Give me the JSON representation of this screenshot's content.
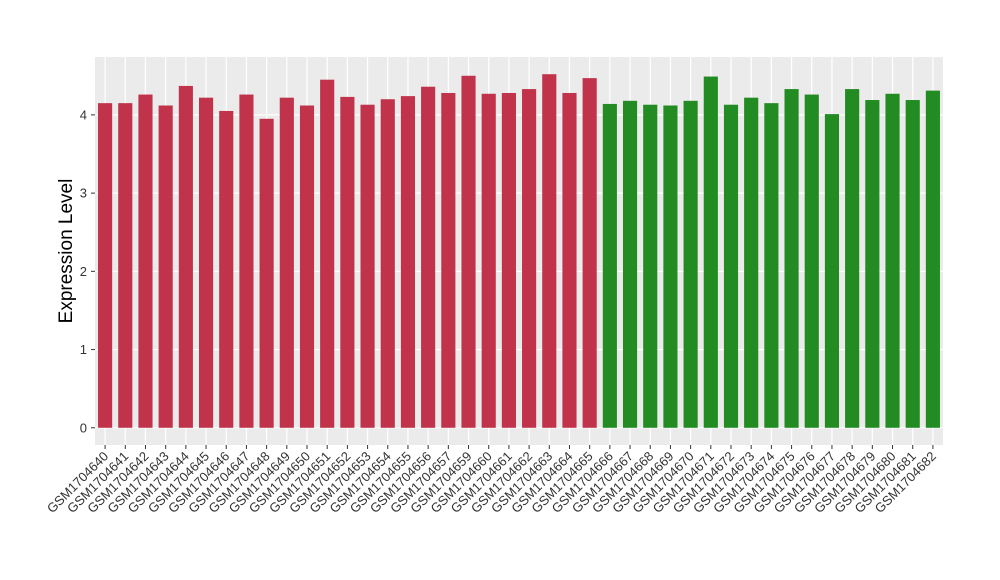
{
  "chart_data": {
    "type": "bar",
    "y_label": "Expression Level",
    "categories": [
      "GSM1704640",
      "GSM1704641",
      "GSM1704642",
      "GSM1704643",
      "GSM1704644",
      "GSM1704645",
      "GSM1704646",
      "GSM1704647",
      "GSM1704648",
      "GSM1704649",
      "GSM1704650",
      "GSM1704651",
      "GSM1704652",
      "GSM1704653",
      "GSM1704654",
      "GSM1704655",
      "GSM1704656",
      "GSM1704657",
      "GSM1704659",
      "GSM1704660",
      "GSM1704661",
      "GSM1704662",
      "GSM1704663",
      "GSM1704664",
      "GSM1704665",
      "GSM1704666",
      "GSM1704667",
      "GSM1704668",
      "GSM1704669",
      "GSM1704670",
      "GSM1704671",
      "GSM1704672",
      "GSM1704673",
      "GSM1704674",
      "GSM1704675",
      "GSM1704676",
      "GSM1704677",
      "GSM1704678",
      "GSM1704679",
      "GSM1704680",
      "GSM1704681",
      "GSM1704682"
    ],
    "values": [
      4.15,
      4.15,
      4.26,
      4.12,
      4.37,
      4.22,
      4.05,
      4.26,
      3.95,
      4.22,
      4.12,
      4.45,
      4.23,
      4.13,
      4.2,
      4.24,
      4.36,
      4.28,
      4.5,
      4.27,
      4.28,
      4.33,
      4.52,
      4.28,
      4.47,
      4.14,
      4.18,
      4.13,
      4.12,
      4.18,
      4.49,
      4.13,
      4.22,
      4.15,
      4.33,
      4.26,
      4.01,
      4.33,
      4.19,
      4.27,
      4.19,
      4.31
    ],
    "colors": [
      "#c0334a",
      "#c0334a",
      "#c0334a",
      "#c0334a",
      "#c0334a",
      "#c0334a",
      "#c0334a",
      "#c0334a",
      "#c0334a",
      "#c0334a",
      "#c0334a",
      "#c0334a",
      "#c0334a",
      "#c0334a",
      "#c0334a",
      "#c0334a",
      "#c0334a",
      "#c0334a",
      "#c0334a",
      "#c0334a",
      "#c0334a",
      "#c0334a",
      "#c0334a",
      "#c0334a",
      "#c0334a",
      "#228b22",
      "#228b22",
      "#228b22",
      "#228b22",
      "#228b22",
      "#228b22",
      "#228b22",
      "#228b22",
      "#228b22",
      "#228b22",
      "#228b22",
      "#228b22",
      "#228b22",
      "#228b22",
      "#228b22",
      "#228b22",
      "#228b22"
    ],
    "ylim": [
      -0.22,
      4.74
    ],
    "yticks": [
      0,
      1,
      2,
      3,
      4
    ],
    "grid": true
  }
}
